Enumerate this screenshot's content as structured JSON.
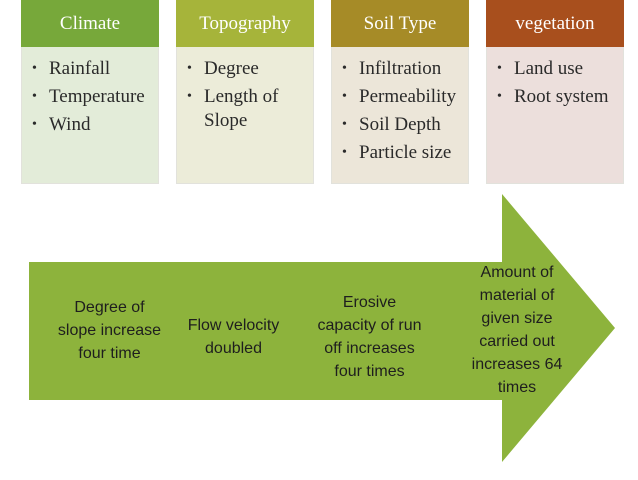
{
  "categories": [
    {
      "title": "Climate",
      "items": [
        "Rainfall",
        "Temperature",
        "Wind"
      ],
      "head_color": "#77a83a",
      "body_color": "#e3ecd9"
    },
    {
      "title": "Topography",
      "items": [
        "Degree",
        "Length of Slope"
      ],
      "head_color": "#a6b43a",
      "body_color": "#ececd9"
    },
    {
      "title": "Soil Type",
      "items": [
        "Infiltration",
        "Permeability",
        "Soil Depth",
        "Particle size"
      ],
      "head_color": "#a68b27",
      "body_color": "#ece6d9"
    },
    {
      "title": "vegetation",
      "items": [
        "Land use",
        "Root system"
      ],
      "head_color": "#a84f1d",
      "body_color": "#ecdfdc"
    }
  ],
  "arrow": {
    "color": "#8db33c",
    "steps": [
      "Degree of slope increase four time",
      "Flow velocity doubled",
      "Erosive capacity of run off increases four times",
      "Amount of material of given size carried out increases 64 times"
    ]
  }
}
